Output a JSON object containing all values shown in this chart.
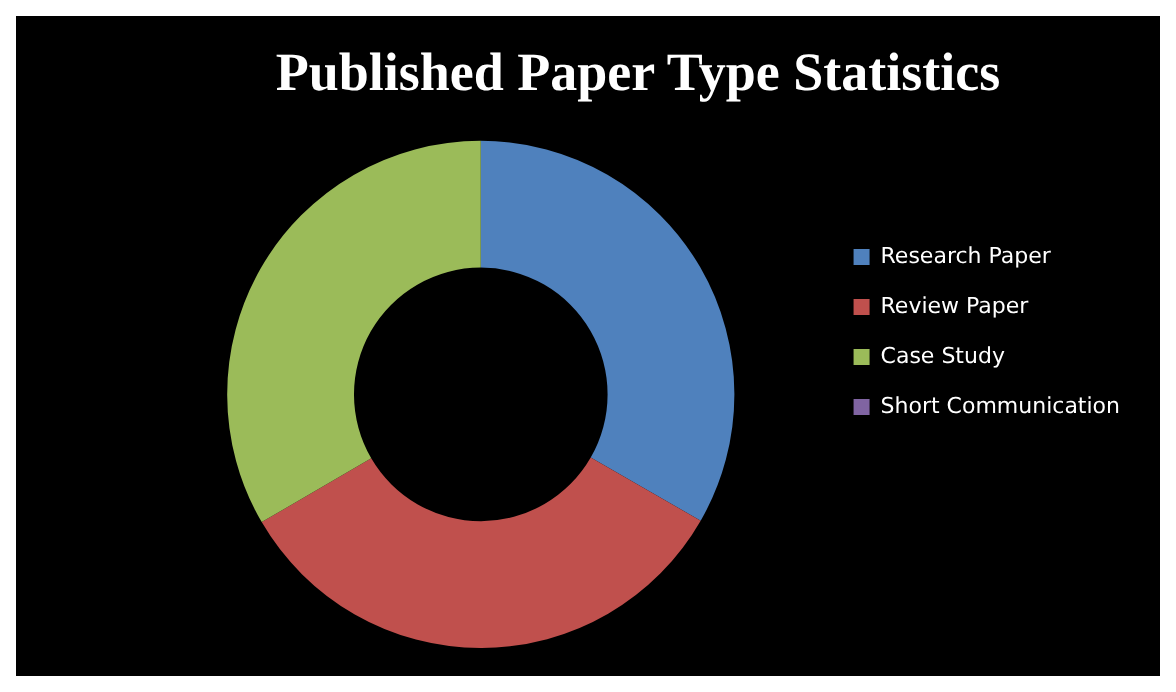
{
  "chart_data": {
    "type": "donut",
    "title": "Published Paper Type Statistics",
    "categories": [
      "Research Paper",
      "Review Paper",
      "Case Study",
      "Short Communication"
    ],
    "values": [
      33.3,
      33.3,
      33.4,
      0
    ],
    "colors": [
      "#4f81bd",
      "#c0504d",
      "#9bbb59",
      "#8064a2"
    ],
    "legend": "right"
  }
}
